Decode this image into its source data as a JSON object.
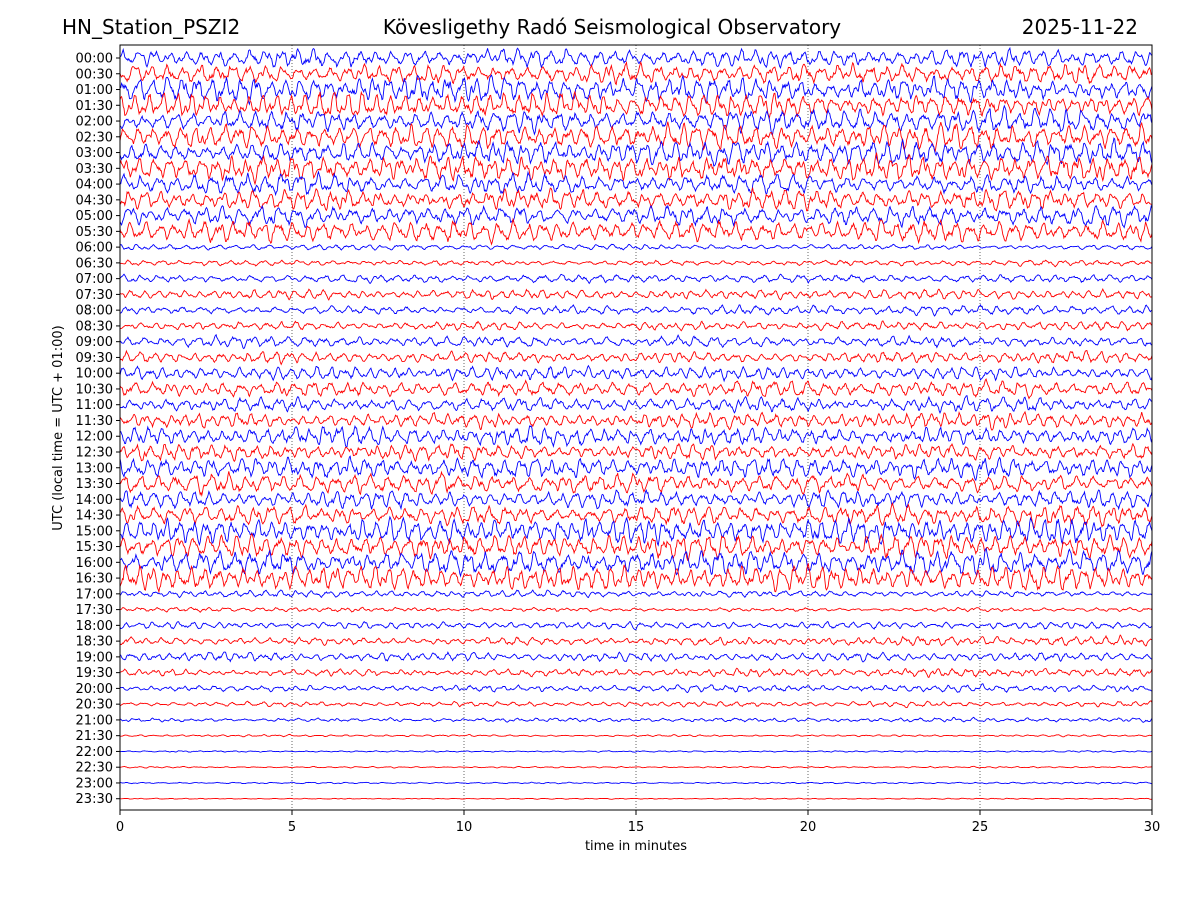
{
  "header": {
    "station": "HN_Station_PSZI2",
    "observatory": "Kövesligethy Radó Seismological Observatory",
    "date": "2025-11-22"
  },
  "chart_data": {
    "type": "line",
    "title": "Kövesligethy Radó Seismological Observatory",
    "xlabel": "time in minutes",
    "ylabel": "UTC (local time = UTC + 01:00)",
    "xlim": [
      0,
      30
    ],
    "xticks": [
      0,
      5,
      10,
      15,
      20,
      25,
      30
    ],
    "grid": "vertical dotted lines at each x tick",
    "row_labels": [
      "00:00",
      "00:30",
      "01:00",
      "01:30",
      "02:00",
      "02:30",
      "03:00",
      "03:30",
      "04:00",
      "04:30",
      "05:00",
      "05:30",
      "06:00",
      "06:30",
      "07:00",
      "07:30",
      "08:00",
      "08:30",
      "09:00",
      "09:30",
      "10:00",
      "10:30",
      "11:00",
      "11:30",
      "12:00",
      "12:30",
      "13:00",
      "13:30",
      "14:00",
      "14:30",
      "15:00",
      "15:30",
      "16:00",
      "16:30",
      "17:00",
      "17:30",
      "18:00",
      "18:30",
      "19:00",
      "19:30",
      "20:00",
      "20:30",
      "21:00",
      "21:30",
      "22:00",
      "22:30",
      "23:00",
      "23:30"
    ],
    "trace_colors": [
      "#0000ff",
      "#ff0000"
    ],
    "relative_amplitude": [
      1.0,
      1.0,
      1.0,
      1.0,
      1.0,
      1.0,
      1.0,
      1.0,
      1.0,
      1.0,
      1.0,
      0.9,
      0.25,
      0.28,
      0.35,
      0.4,
      0.4,
      0.45,
      0.5,
      0.55,
      0.6,
      0.65,
      0.7,
      0.75,
      0.75,
      0.8,
      0.8,
      0.85,
      0.9,
      0.95,
      1.0,
      1.0,
      1.0,
      1.0,
      0.3,
      0.2,
      0.3,
      0.4,
      0.45,
      0.35,
      0.3,
      0.25,
      0.18,
      0.1,
      0.08,
      0.08,
      0.08,
      0.05
    ]
  }
}
